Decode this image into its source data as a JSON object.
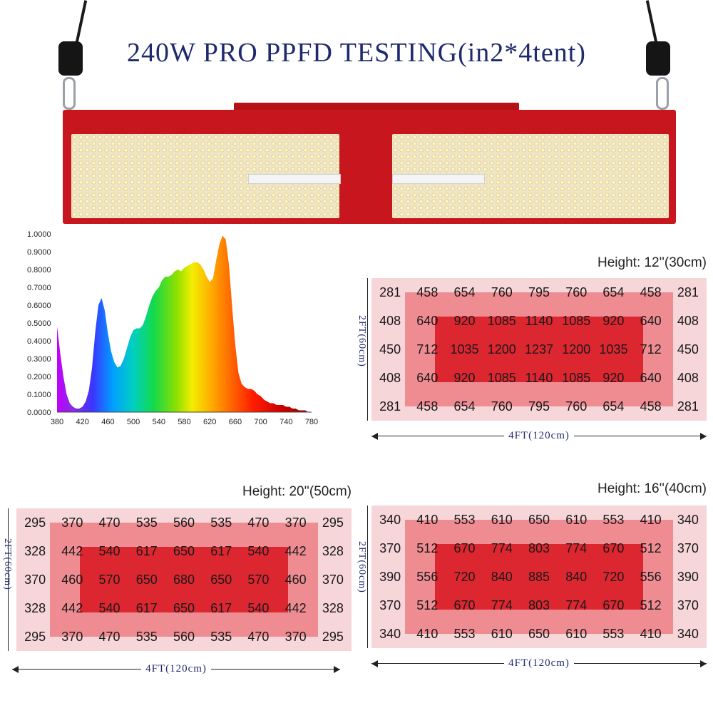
{
  "title": "240W  PRO PPFD TESTING(in2*4tent)",
  "colors": {
    "title": "#1e2a6e",
    "frame": "#c8161e",
    "outer_zone": "#f7d6d9",
    "mid_zone": "#ee8c92",
    "core_zone": "#dc2630"
  },
  "fixture": {
    "icons": [
      "rope-icon",
      "ratchet-hanger-icon",
      "carabiner-icon",
      "led-board-icon"
    ]
  },
  "chart_data": [
    {
      "type": "area",
      "x": [
        380,
        385,
        390,
        395,
        400,
        405,
        410,
        415,
        420,
        425,
        430,
        435,
        440,
        445,
        450,
        455,
        460,
        465,
        470,
        475,
        480,
        485,
        490,
        495,
        500,
        505,
        510,
        515,
        520,
        525,
        530,
        535,
        540,
        545,
        550,
        555,
        560,
        565,
        570,
        575,
        580,
        585,
        590,
        595,
        600,
        605,
        610,
        615,
        620,
        625,
        630,
        635,
        640,
        645,
        650,
        655,
        660,
        665,
        670,
        675,
        680,
        685,
        690,
        695,
        700,
        705,
        710,
        715,
        720,
        725,
        730,
        735,
        740,
        745,
        750,
        755,
        760,
        765,
        770,
        775,
        780
      ],
      "values": [
        0.48,
        0.33,
        0.2,
        0.1,
        0.05,
        0.03,
        0.02,
        0.02,
        0.03,
        0.06,
        0.12,
        0.25,
        0.45,
        0.6,
        0.64,
        0.57,
        0.44,
        0.34,
        0.28,
        0.25,
        0.26,
        0.3,
        0.36,
        0.42,
        0.46,
        0.47,
        0.47,
        0.49,
        0.54,
        0.6,
        0.65,
        0.68,
        0.7,
        0.74,
        0.76,
        0.76,
        0.77,
        0.79,
        0.8,
        0.79,
        0.81,
        0.82,
        0.83,
        0.84,
        0.84,
        0.83,
        0.8,
        0.76,
        0.73,
        0.75,
        0.85,
        0.94,
        0.99,
        0.97,
        0.83,
        0.6,
        0.38,
        0.22,
        0.16,
        0.14,
        0.13,
        0.13,
        0.12,
        0.1,
        0.09,
        0.07,
        0.06,
        0.05,
        0.05,
        0.04,
        0.04,
        0.04,
        0.03,
        0.03,
        0.02,
        0.02,
        0.01,
        0.01,
        0.01,
        0.0,
        0.0
      ],
      "title": "",
      "xlabel": "",
      "ylabel": "",
      "xlim": [
        380,
        780
      ],
      "ylim": [
        0,
        1
      ],
      "xticks": [
        "380",
        "420",
        "460",
        "500",
        "540",
        "580",
        "620",
        "660",
        "700",
        "740",
        "780"
      ],
      "yticks": [
        "0.0000",
        "0.1000",
        "0.2000",
        "0.3000",
        "0.4000",
        "0.5000",
        "0.6000",
        "0.7000",
        "0.8000",
        "0.9000",
        "1.0000"
      ],
      "grid": false,
      "legend": "none",
      "fill": "visible-spectrum gradient"
    },
    {
      "type": "heatmap",
      "title": "Height: 12''(30cm)",
      "xlabel": "4FT(120cm)",
      "ylabel": "2FT(60cm)",
      "values": [
        [
          281,
          458,
          654,
          760,
          795,
          760,
          654,
          458,
          281
        ],
        [
          408,
          640,
          920,
          1085,
          1140,
          1085,
          920,
          640,
          408
        ],
        [
          450,
          712,
          1035,
          1200,
          1237,
          1200,
          1035,
          712,
          450
        ],
        [
          408,
          640,
          920,
          1085,
          1140,
          1085,
          920,
          640,
          408
        ],
        [
          281,
          458,
          654,
          760,
          795,
          760,
          654,
          458,
          281
        ]
      ]
    },
    {
      "type": "heatmap",
      "title": "Height: 20''(50cm)",
      "xlabel": "4FT(120cm)",
      "ylabel": "2FT(60cm)",
      "values": [
        [
          295,
          370,
          470,
          535,
          560,
          535,
          470,
          370,
          295
        ],
        [
          328,
          442,
          540,
          617,
          650,
          617,
          540,
          442,
          328
        ],
        [
          370,
          460,
          570,
          650,
          680,
          650,
          570,
          460,
          370
        ],
        [
          328,
          442,
          540,
          617,
          650,
          617,
          540,
          442,
          328
        ],
        [
          295,
          370,
          470,
          535,
          560,
          535,
          470,
          370,
          295
        ]
      ]
    },
    {
      "type": "heatmap",
      "title": "Height: 16''(40cm)",
      "xlabel": "4FT(120cm)",
      "ylabel": "2FT(60cm)",
      "values": [
        [
          340,
          410,
          553,
          610,
          650,
          610,
          553,
          410,
          340
        ],
        [
          370,
          512,
          670,
          774,
          803,
          774,
          670,
          512,
          370
        ],
        [
          390,
          556,
          720,
          840,
          885,
          840,
          720,
          556,
          390
        ],
        [
          370,
          512,
          670,
          774,
          803,
          774,
          670,
          512,
          370
        ],
        [
          340,
          410,
          553,
          610,
          650,
          610,
          553,
          410,
          340
        ]
      ]
    }
  ]
}
